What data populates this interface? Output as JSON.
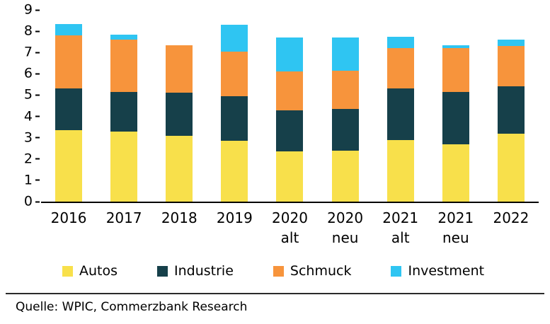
{
  "chart_data": {
    "type": "bar",
    "stacked": true,
    "title": "",
    "xlabel": "",
    "ylabel": "",
    "ylim": [
      0,
      9
    ],
    "ytick_step": 1,
    "grid": false,
    "legend_position": "bottom",
    "categories": [
      "2016",
      "2017",
      "2018",
      "2019",
      "2020\nalt",
      "2020\nneu",
      "2021\nalt",
      "2021\nneu",
      "2022"
    ],
    "series": [
      {
        "name": "Autos",
        "color": "#F8E04B",
        "values": [
          3.35,
          3.3,
          3.1,
          2.85,
          2.35,
          2.4,
          2.9,
          2.7,
          3.2
        ]
      },
      {
        "name": "Industrie",
        "color": "#16404A",
        "values": [
          1.95,
          1.85,
          2.0,
          2.1,
          1.95,
          1.95,
          2.4,
          2.45,
          2.2
        ]
      },
      {
        "name": "Schmuck",
        "color": "#F7943C",
        "values": [
          2.5,
          2.45,
          2.25,
          2.1,
          1.8,
          1.8,
          1.9,
          2.05,
          1.9
        ]
      },
      {
        "name": "Investment",
        "color": "#2FC5F2",
        "values": [
          0.55,
          0.25,
          0.0,
          1.25,
          1.6,
          1.55,
          0.55,
          0.15,
          0.3
        ]
      }
    ]
  },
  "footer": {
    "source": "Quelle: WPIC, Commerzbank Research"
  }
}
